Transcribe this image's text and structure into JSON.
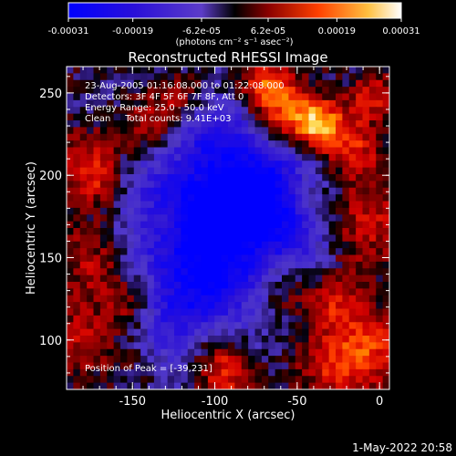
{
  "chart_data": {
    "type": "heatmap",
    "title": "Reconstructed RHESSI Image",
    "xlabel": "Heliocentric X (arcsec)",
    "ylabel": "Heliocentric Y (arcsec)",
    "xlim": [
      -190,
      6
    ],
    "ylim": [
      70,
      266
    ],
    "x_ticks": [
      -150,
      -100,
      -50,
      0
    ],
    "y_ticks": [
      100,
      150,
      200,
      250
    ],
    "colorbar": {
      "min": -0.00031,
      "max": 0.00031,
      "tick_labels": [
        "-0.00031",
        "-0.00019",
        "-6.2e-05",
        "6.2e-05",
        "0.00019",
        "0.00031"
      ],
      "unit_label": "(photons cm⁻² s⁻¹ asec⁻²)",
      "colormap": [
        "#0000ff",
        "#2a10d8",
        "#4a28c0",
        "#5c3cc8",
        "#000000",
        "#7a0000",
        "#d00000",
        "#ff4000",
        "#ff9000",
        "#ffd040",
        "#ffffff"
      ]
    },
    "annotations": [
      "23-Aug-2005 01:16:08.000 to 01:22:08.000",
      "Detectors: 3F 4F 5F 6F 7F 8F, Att 0",
      "Energy Range: 25.0 - 50.0 keV",
      "Clean     Total counts: 9.41E+03"
    ],
    "peak_label": "Position of Peak = [-39,231]",
    "peak_position": [
      -39,
      231
    ]
  },
  "timestamp": "1-May-2022 20:58"
}
